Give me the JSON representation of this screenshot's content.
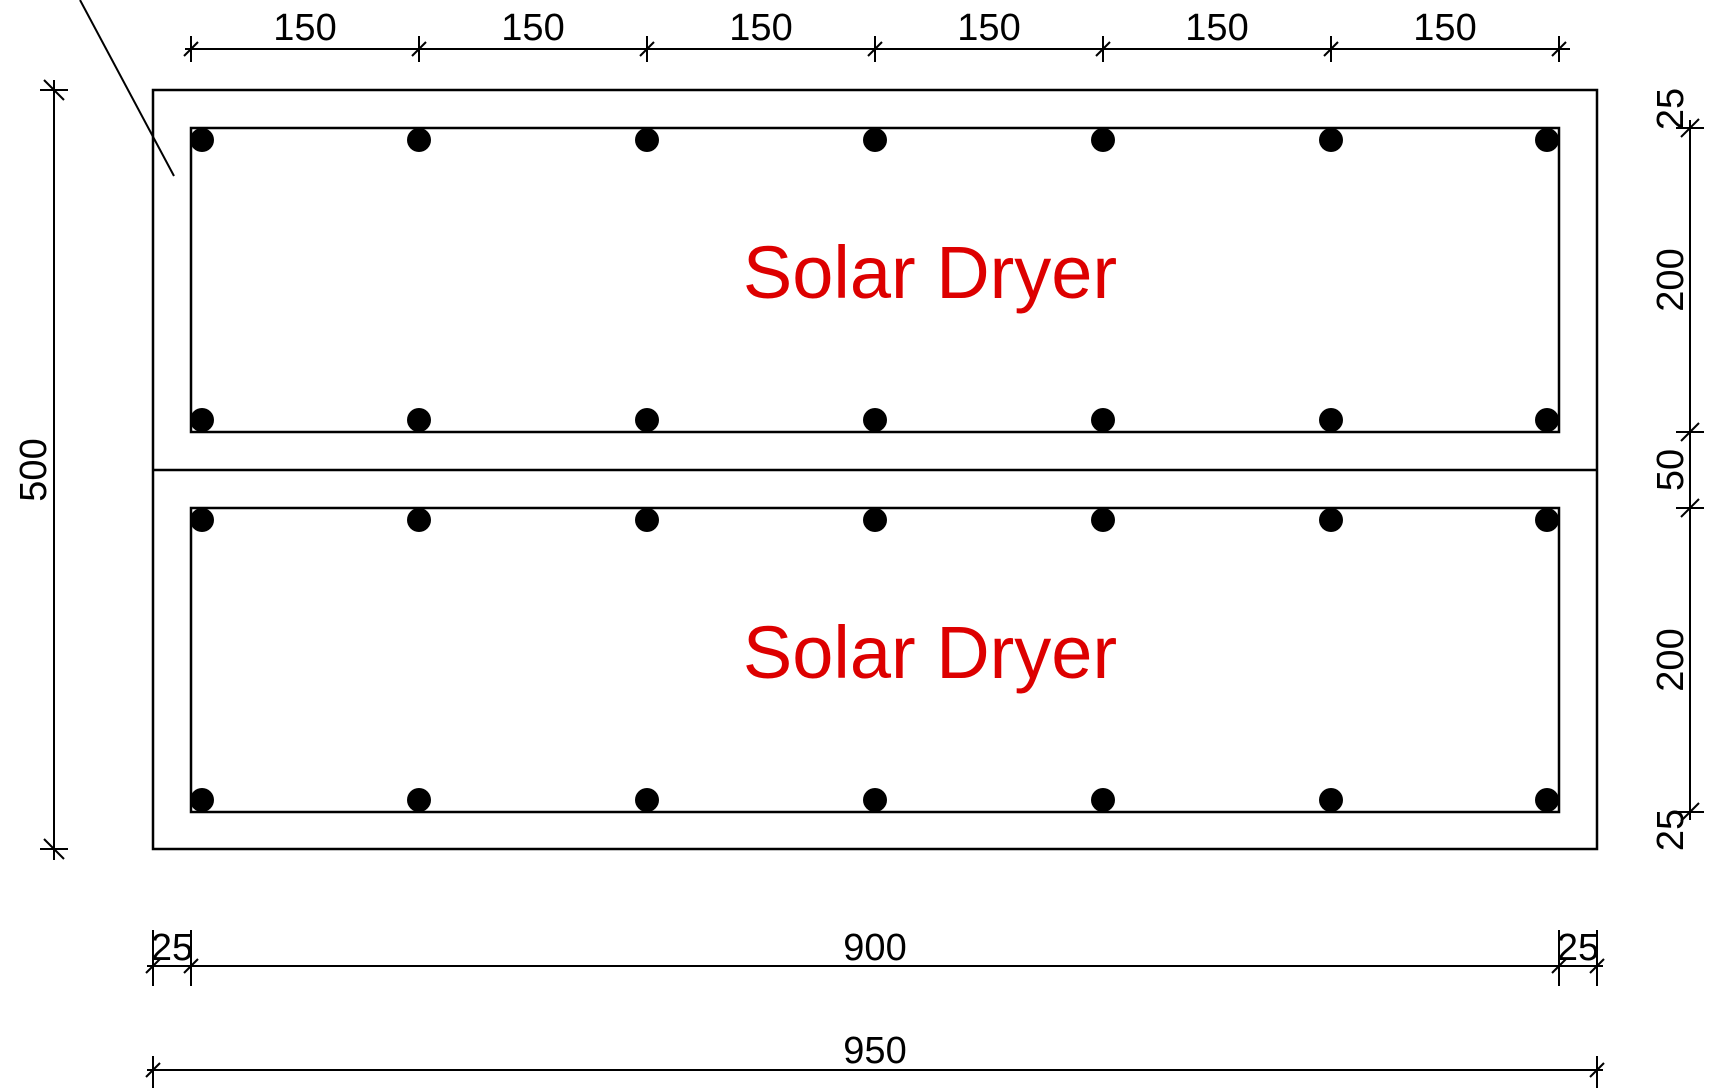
{
  "top_dimensions": [
    "150",
    "150",
    "150",
    "150",
    "150",
    "150"
  ],
  "left_dimension": "500",
  "right_dimensions": [
    "25",
    "200",
    "50",
    "200",
    "25"
  ],
  "bottom_inner": {
    "left": "25",
    "middle": "900",
    "right": "25"
  },
  "bottom_overall": "950",
  "panels": [
    {
      "label": "Solar Dryer"
    },
    {
      "label": "Solar Dryer"
    }
  ],
  "colors": {
    "label": "#dd0000",
    "hatch": "#1a8cff",
    "line": "#000000"
  },
  "icons": {
    "bar": "filled-circle-rebar",
    "concrete": "stipple-concrete-fill"
  }
}
